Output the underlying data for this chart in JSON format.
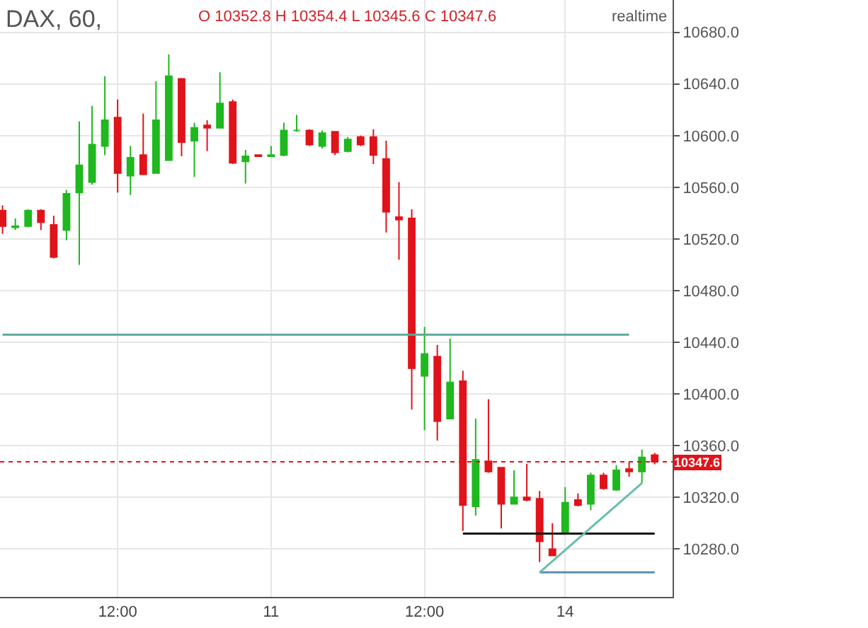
{
  "chart_data": {
    "type": "candlestick",
    "title": "DAX, 60,",
    "subtitle": "O 10352.8 H 10354.4 L 10345.6 C 10347.6",
    "annotations": [
      "realtime"
    ],
    "categories": [
      null,
      null,
      null,
      null,
      null,
      null,
      null,
      null,
      null,
      "12:00",
      null,
      null,
      null,
      null,
      null,
      null,
      null,
      null,
      null,
      null,
      null,
      "11",
      null,
      null,
      null,
      null,
      null,
      null,
      null,
      null,
      null,
      null,
      null,
      "12:00",
      null,
      null,
      null,
      null,
      null,
      null,
      null,
      null,
      null,
      null,
      "14",
      null,
      null,
      null,
      null,
      null,
      null,
      null
    ],
    "ohlc": [
      [
        10542,
        10546,
        10524,
        10530
      ],
      [
        10529,
        10536,
        10527,
        10530
      ],
      [
        10530,
        10543,
        10529,
        10542
      ],
      [
        10542,
        10543,
        10527,
        10533
      ],
      [
        10531,
        10538,
        10505,
        10506
      ],
      [
        10527,
        10558,
        10519,
        10555
      ],
      [
        10556,
        10611,
        10500,
        10577
      ],
      [
        10564,
        10623,
        10562,
        10593
      ],
      [
        10592,
        10646,
        10585,
        10612
      ],
      [
        10614,
        10628,
        10556,
        10571
      ],
      [
        10569,
        10592,
        10554,
        10583
      ],
      [
        10585,
        10617,
        10570,
        10570
      ],
      [
        10571,
        10642,
        10571,
        10612
      ],
      [
        10581,
        10663,
        10581,
        10646
      ],
      [
        10644,
        10644,
        10584,
        10595
      ],
      [
        10596,
        10610,
        10568,
        10606
      ],
      [
        10608,
        10612,
        10588,
        10606
      ],
      [
        10606,
        10649,
        10606,
        10625
      ],
      [
        10626,
        10628,
        10578,
        10579
      ],
      [
        10580,
        10589,
        10563,
        10584
      ],
      [
        10585,
        10585,
        10584,
        10584
      ],
      [
        10584,
        10592,
        10584,
        10585
      ],
      [
        10585,
        10610,
        10584,
        10604
      ],
      [
        10604,
        10616,
        10603,
        10604
      ],
      [
        10604,
        10605,
        10592,
        10593
      ],
      [
        10592,
        10604,
        10590,
        10602
      ],
      [
        10603,
        10603,
        10585,
        10587
      ],
      [
        10588,
        10599,
        10587,
        10597
      ],
      [
        10599,
        10600,
        10592,
        10593
      ],
      [
        10599,
        10605,
        10578,
        10585
      ],
      [
        10582,
        10596,
        10525,
        10541
      ],
      [
        10537,
        10564,
        10504,
        10535
      ],
      [
        10536,
        10543,
        10388,
        10420
      ],
      [
        10414,
        10452,
        10372,
        10431
      ],
      [
        10429,
        10438,
        10364,
        10379
      ],
      [
        10381,
        10443,
        10381,
        10409
      ],
      [
        10410,
        10418,
        10294,
        10314
      ],
      [
        10313,
        10381,
        10306,
        10349
      ],
      [
        10348,
        10396,
        10339,
        10340
      ],
      [
        10343,
        10343,
        10296,
        10315
      ],
      [
        10315,
        10341,
        10315,
        10320
      ],
      [
        10320,
        10346,
        10317,
        10318
      ],
      [
        10319,
        10325,
        10270,
        10286
      ],
      [
        10280,
        10300,
        10275,
        10275
      ],
      [
        10292,
        10328,
        10291,
        10316
      ],
      [
        10318,
        10323,
        10313,
        10314
      ],
      [
        10315,
        10339,
        10310,
        10337
      ],
      [
        10337,
        10339,
        10326,
        10327
      ],
      [
        10326,
        10345,
        10325,
        10341
      ],
      [
        10342,
        10347,
        10336,
        10340
      ],
      [
        10340,
        10357,
        10331,
        10351
      ],
      [
        10352.8,
        10354.4,
        10345.6,
        10347.6
      ]
    ],
    "colors": [
      "#e0131b",
      "#1fb81f",
      "#1fb81f",
      "#e0131b",
      "#e0131b",
      "#1fb81f",
      "#1fb81f",
      "#1fb81f",
      "#1fb81f",
      "#e0131b",
      "#1fb81f",
      "#e0131b",
      "#1fb81f",
      "#1fb81f",
      "#e0131b",
      "#1fb81f",
      "#e0131b",
      "#1fb81f",
      "#e0131b",
      "#1fb81f",
      "#e0131b",
      "#1fb81f",
      "#1fb81f",
      "#1fb81f",
      "#e0131b",
      "#1fb81f",
      "#e0131b",
      "#1fb81f",
      "#e0131b",
      "#e0131b",
      "#e0131b",
      "#e0131b",
      "#e0131b",
      "#1fb81f",
      "#e0131b",
      "#1fb81f",
      "#e0131b",
      "#1fb81f",
      "#e0131b",
      "#e0131b",
      "#1fb81f",
      "#e0131b",
      "#e0131b",
      "#e0131b",
      "#1fb81f",
      "#e0131b",
      "#1fb81f",
      "#e0131b",
      "#1fb81f",
      "#e0131b",
      "#1fb81f",
      "#e0131b"
    ],
    "series": [
      {
        "type": "line",
        "color": "#5fa89a",
        "values": [
          10446,
          null,
          null,
          null,
          null,
          null,
          null,
          null,
          null,
          null,
          null,
          null,
          null,
          null,
          null,
          null,
          null,
          null,
          null,
          null,
          null,
          null,
          null,
          null,
          null,
          null,
          null,
          null,
          null,
          null,
          null,
          null,
          null,
          null,
          null,
          null,
          null,
          null,
          null,
          null,
          null,
          null,
          null,
          null,
          null,
          null,
          null,
          null,
          null,
          10446,
          null,
          null
        ]
      },
      {
        "type": "line",
        "color": "#111111",
        "values": [
          null,
          null,
          null,
          null,
          null,
          null,
          null,
          null,
          null,
          null,
          null,
          null,
          null,
          null,
          null,
          null,
          null,
          null,
          null,
          null,
          null,
          null,
          null,
          null,
          null,
          null,
          null,
          null,
          null,
          null,
          null,
          null,
          null,
          null,
          null,
          null,
          10292,
          null,
          null,
          null,
          null,
          null,
          null,
          null,
          null,
          null,
          null,
          null,
          null,
          null,
          null,
          10292
        ]
      },
      {
        "type": "line",
        "color": "#5a8fb0",
        "values": [
          null,
          null,
          null,
          null,
          null,
          null,
          null,
          null,
          null,
          null,
          null,
          null,
          null,
          null,
          null,
          null,
          null,
          null,
          null,
          null,
          null,
          null,
          null,
          null,
          null,
          null,
          null,
          null,
          null,
          null,
          null,
          null,
          null,
          null,
          null,
          null,
          null,
          null,
          null,
          null,
          null,
          null,
          10262,
          null,
          null,
          null,
          null,
          null,
          null,
          null,
          null,
          10262
        ]
      },
      {
        "type": "line",
        "color": "#66bfae",
        "values": [
          null,
          null,
          null,
          null,
          null,
          null,
          null,
          null,
          null,
          null,
          null,
          null,
          null,
          null,
          null,
          null,
          null,
          null,
          null,
          null,
          null,
          null,
          null,
          null,
          null,
          null,
          null,
          null,
          null,
          null,
          null,
          null,
          null,
          null,
          null,
          null,
          null,
          null,
          null,
          null,
          null,
          null,
          10262,
          null,
          null,
          null,
          null,
          null,
          null,
          null,
          10331,
          null
        ]
      }
    ],
    "ref_lines": [
      {
        "axis": "y",
        "value": 10347.6,
        "label": "10347.6",
        "color": "#e0131b",
        "line_style": "dotted"
      }
    ],
    "ylim": [
      10243,
      10705
    ],
    "yticks": [
      {
        "value": 10280,
        "label": "10280.0"
      },
      {
        "value": 10320,
        "label": "10320.0"
      },
      {
        "value": 10360,
        "label": "10360.0"
      },
      {
        "value": 10400,
        "label": "10400.0"
      },
      {
        "value": 10440,
        "label": "10440.0"
      },
      {
        "value": 10480,
        "label": "10480.0"
      },
      {
        "value": 10520,
        "label": "10520.0"
      },
      {
        "value": 10560,
        "label": "10560.0"
      },
      {
        "value": 10600,
        "label": "10600.0"
      },
      {
        "value": 10640,
        "label": "10640.0"
      },
      {
        "value": 10680,
        "label": "10680.0"
      }
    ],
    "grid": true
  }
}
